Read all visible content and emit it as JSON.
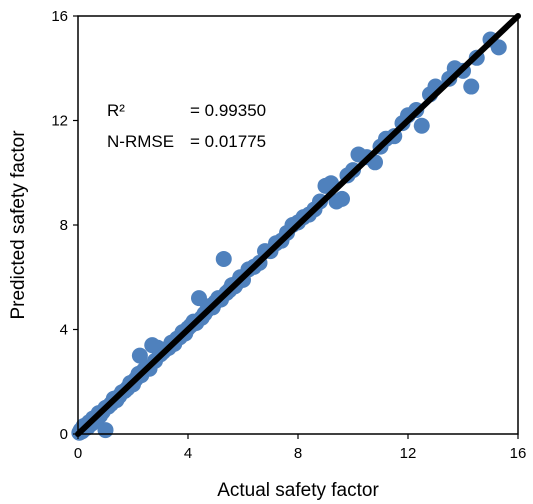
{
  "chart_data": {
    "type": "scatter",
    "title": "",
    "xlabel": "Actual safety factor",
    "ylabel": "Predicted safety factor",
    "xlim": [
      0,
      16
    ],
    "ylim": [
      0,
      16
    ],
    "xticks": [
      "0",
      "4",
      "8",
      "12",
      "16"
    ],
    "yticks": [
      "0",
      "4",
      "8",
      "12",
      "16"
    ],
    "grid": false,
    "annotations": {
      "r2_label": "R²",
      "r2_value": "= 0.99350",
      "nrmse_label": "N-RMSE",
      "nrmse_value": "= 0.01775"
    },
    "series": [
      {
        "color": "#4F81BD",
        "points": [
          [
            0.05,
            0.05
          ],
          [
            0.1,
            0.15
          ],
          [
            0.15,
            0.1
          ],
          [
            0.2,
            0.3
          ],
          [
            0.25,
            0.2
          ],
          [
            0.3,
            0.35
          ],
          [
            0.35,
            0.25
          ],
          [
            0.4,
            0.45
          ],
          [
            0.5,
            0.4
          ],
          [
            0.55,
            0.6
          ],
          [
            0.6,
            0.55
          ],
          [
            0.7,
            0.65
          ],
          [
            0.75,
            0.8
          ],
          [
            0.8,
            0.7
          ],
          [
            0.9,
            0.85
          ],
          [
            1.0,
            1.0
          ],
          [
            1.0,
            0.15
          ],
          [
            1.1,
            1.05
          ],
          [
            1.2,
            1.15
          ],
          [
            1.3,
            1.35
          ],
          [
            1.4,
            1.3
          ],
          [
            1.5,
            1.45
          ],
          [
            1.6,
            1.6
          ],
          [
            1.7,
            1.65
          ],
          [
            1.8,
            1.75
          ],
          [
            1.9,
            1.95
          ],
          [
            2.0,
            1.9
          ],
          [
            2.1,
            2.1
          ],
          [
            2.2,
            2.3
          ],
          [
            2.3,
            2.25
          ],
          [
            2.25,
            3.0
          ],
          [
            2.4,
            2.45
          ],
          [
            2.5,
            2.55
          ],
          [
            2.6,
            2.5
          ],
          [
            2.7,
            3.4
          ],
          [
            2.8,
            2.8
          ],
          [
            2.9,
            3.3
          ],
          [
            3.0,
            3.05
          ],
          [
            3.1,
            3.15
          ],
          [
            3.2,
            3.25
          ],
          [
            3.3,
            3.3
          ],
          [
            3.4,
            3.5
          ],
          [
            3.5,
            3.45
          ],
          [
            3.6,
            3.65
          ],
          [
            3.7,
            3.7
          ],
          [
            3.8,
            3.9
          ],
          [
            3.9,
            3.85
          ],
          [
            4.0,
            4.05
          ],
          [
            4.1,
            4.15
          ],
          [
            4.2,
            4.3
          ],
          [
            4.3,
            4.25
          ],
          [
            4.4,
            5.2
          ],
          [
            4.5,
            4.45
          ],
          [
            4.6,
            4.6
          ],
          [
            4.7,
            4.75
          ],
          [
            4.8,
            4.9
          ],
          [
            4.9,
            4.85
          ],
          [
            5.0,
            5.05
          ],
          [
            5.1,
            5.2
          ],
          [
            5.2,
            5.15
          ],
          [
            5.3,
            6.7
          ],
          [
            5.4,
            5.4
          ],
          [
            5.5,
            5.5
          ],
          [
            5.6,
            5.7
          ],
          [
            5.7,
            5.65
          ],
          [
            5.8,
            5.8
          ],
          [
            5.9,
            6.0
          ],
          [
            6.0,
            5.9
          ],
          [
            6.2,
            6.3
          ],
          [
            6.4,
            6.4
          ],
          [
            6.6,
            6.55
          ],
          [
            6.8,
            7.0
          ],
          [
            7.0,
            7.0
          ],
          [
            7.2,
            7.3
          ],
          [
            7.4,
            7.4
          ],
          [
            7.6,
            7.7
          ],
          [
            7.8,
            8.0
          ],
          [
            8.0,
            8.1
          ],
          [
            8.2,
            8.3
          ],
          [
            8.4,
            8.4
          ],
          [
            8.6,
            8.6
          ],
          [
            8.8,
            8.9
          ],
          [
            9.0,
            9.5
          ],
          [
            9.2,
            9.6
          ],
          [
            9.4,
            8.9
          ],
          [
            9.6,
            9.0
          ],
          [
            9.8,
            9.9
          ],
          [
            10.0,
            10.1
          ],
          [
            10.2,
            10.7
          ],
          [
            10.5,
            10.6
          ],
          [
            10.8,
            10.4
          ],
          [
            11.0,
            11.0
          ],
          [
            11.2,
            11.3
          ],
          [
            11.5,
            11.4
          ],
          [
            11.8,
            11.9
          ],
          [
            12.0,
            12.2
          ],
          [
            12.3,
            12.4
          ],
          [
            12.5,
            11.8
          ],
          [
            12.8,
            13.0
          ],
          [
            13.0,
            13.3
          ],
          [
            13.5,
            13.6
          ],
          [
            13.7,
            14.0
          ],
          [
            14.0,
            13.9
          ],
          [
            14.3,
            13.3
          ],
          [
            14.5,
            14.4
          ],
          [
            15.0,
            15.1
          ],
          [
            15.3,
            14.8
          ]
        ]
      }
    ]
  }
}
